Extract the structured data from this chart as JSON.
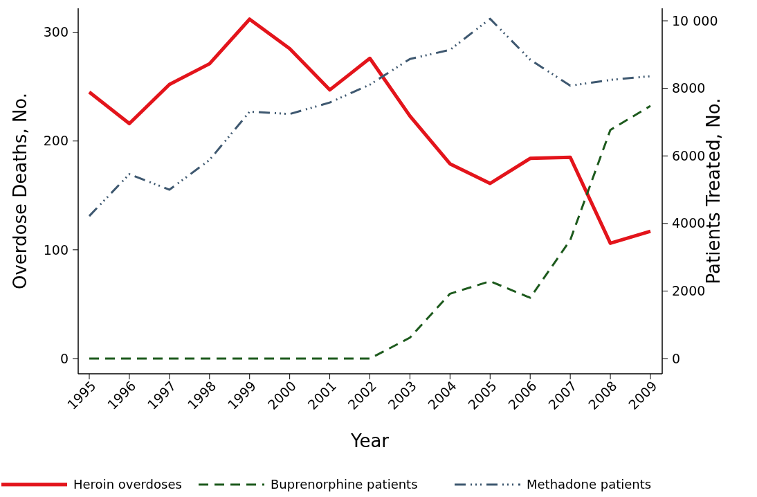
{
  "chart_data": {
    "type": "line",
    "xlabel": "Year",
    "ylabel": "Overdose Deaths, No.",
    "y2label": "Patients Treated, No.",
    "categories": [
      "1995",
      "1996",
      "1997",
      "1998",
      "1999",
      "2000",
      "2001",
      "2002",
      "2003",
      "2004",
      "2005",
      "2006",
      "2007",
      "2008",
      "2009"
    ],
    "series": [
      {
        "name": "Heroin overdoses",
        "color": "#e3141b",
        "line_style": "solid",
        "values": [
          245,
          216,
          252,
          271,
          312,
          285,
          247,
          276,
          223,
          179,
          161,
          184,
          185,
          106,
          117
        ]
      },
      {
        "name": "Buprenorphine patients",
        "color": "#1d5a1d",
        "line_style": "dashed",
        "axis": "y2",
        "values": [
          0,
          0,
          0,
          0,
          0,
          0,
          0,
          0,
          620,
          1920,
          2290,
          1800,
          3510,
          6770,
          7480
        ]
      },
      {
        "name": "Methadone patients",
        "color": "#3e5870",
        "line_style": "dotted",
        "axis": "y2",
        "values": [
          4220,
          5460,
          5000,
          5880,
          7310,
          7240,
          7580,
          8110,
          8870,
          9140,
          10060,
          8850,
          8080,
          8250,
          8360
        ]
      }
    ],
    "ylim": [
      -14,
      322
    ],
    "yticks": [
      0,
      100,
      200,
      300
    ],
    "y2lim": [
      -450,
      10370
    ],
    "y2ticks": [
      0,
      2000,
      4000,
      6000,
      8000,
      {
        "value": 10000,
        "label": "10 000"
      }
    ],
    "grid": false,
    "legend": "bottom"
  }
}
